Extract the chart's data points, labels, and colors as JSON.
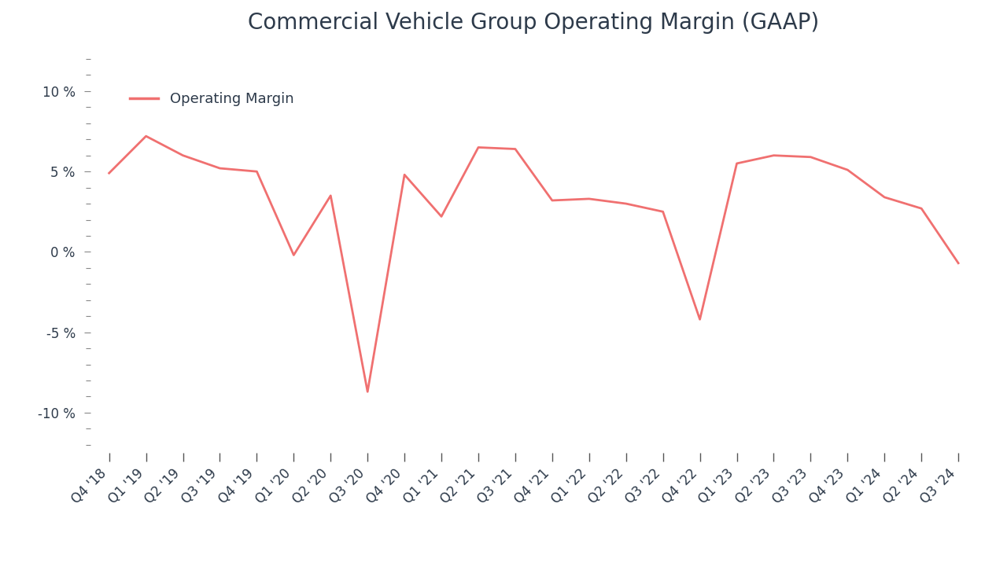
{
  "title": "Commercial Vehicle Group Operating Margin (GAAP)",
  "legend_label": "Operating Margin",
  "line_color": "#F07070",
  "background_color": "#ffffff",
  "title_color": "#2d3a4a",
  "axis_color": "#2d3a4a",
  "categories": [
    "Q4 '18",
    "Q1 '19",
    "Q2 '19",
    "Q3 '19",
    "Q4 '19",
    "Q1 '20",
    "Q2 '20",
    "Q3 '20",
    "Q4 '20",
    "Q1 '21",
    "Q2 '21",
    "Q3 '21",
    "Q4 '21",
    "Q1 '22",
    "Q2 '22",
    "Q3 '22",
    "Q4 '22",
    "Q1 '23",
    "Q2 '23",
    "Q3 '23",
    "Q4 '23",
    "Q1 '24",
    "Q2 '24",
    "Q3 '24"
  ],
  "values": [
    4.9,
    7.2,
    6.0,
    5.2,
    5.0,
    -0.2,
    3.5,
    -8.7,
    4.8,
    2.2,
    6.5,
    6.4,
    3.2,
    3.3,
    3.0,
    2.5,
    -4.2,
    5.5,
    6.0,
    5.9,
    5.1,
    3.4,
    2.7,
    -0.7
  ],
  "ylim": [
    -12.5,
    12.5
  ],
  "yticks": [
    -10,
    -5,
    0,
    5,
    10
  ],
  "ytick_labels": [
    "-10 %",
    "-5 %",
    "0 %",
    "5 %",
    "10 %"
  ],
  "title_fontsize": 20,
  "legend_fontsize": 13,
  "tick_fontsize": 12,
  "line_width": 2.0
}
